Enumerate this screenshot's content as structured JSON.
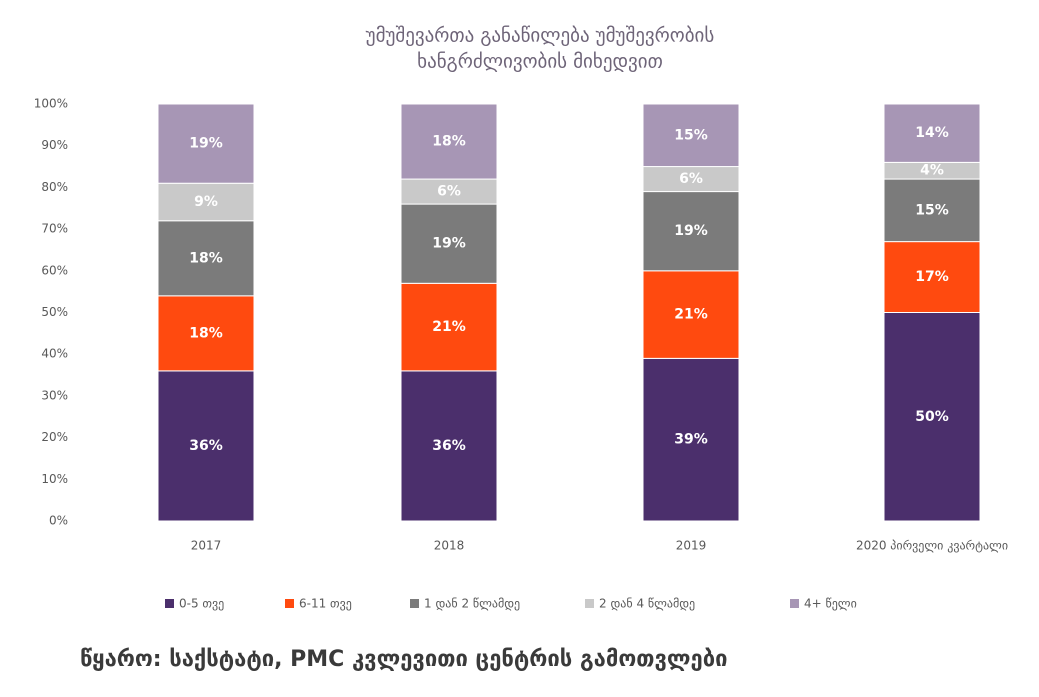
{
  "chart_data": {
    "type": "stacked_bar",
    "title": [
      "უმუშევართა განაწილება უმუშევრობის",
      "ხანგრძლივობის მიხედვით"
    ],
    "categories": [
      "2017",
      "2018",
      "2019",
      "2020 პირველი კვარტალი"
    ],
    "series": [
      {
        "name": "0-5 თვე",
        "color": "#4b2f6c",
        "values": [
          36,
          36,
          39,
          50
        ],
        "value_labels": [
          "36%",
          "36%",
          "39%",
          "50%"
        ]
      },
      {
        "name": "6-11 თვე",
        "color": "#ff4a0f",
        "values": [
          18,
          21,
          21,
          17
        ],
        "value_labels": [
          "18%",
          "21%",
          "21%",
          "17%"
        ]
      },
      {
        "name": "1 დან 2 წლამდე",
        "color": "#7b7b7b",
        "values": [
          18,
          19,
          19,
          15
        ],
        "value_labels": [
          "18%",
          "19%",
          "19%",
          "15%"
        ]
      },
      {
        "name": "2 დან 4 წლამდე",
        "color": "#c9c9c9",
        "values": [
          9,
          6,
          6,
          4
        ],
        "value_labels": [
          "9%",
          "6%",
          "6%",
          "4%"
        ]
      },
      {
        "name": "4+ წელი",
        "color": "#a796b5",
        "values": [
          19,
          18,
          15,
          14
        ],
        "value_labels": [
          "19%",
          "18%",
          "15%",
          "14%"
        ]
      }
    ],
    "ylim": [
      0,
      100
    ],
    "yticks": [
      {
        "value": 0,
        "label": "0%"
      },
      {
        "value": 10,
        "label": "10%"
      },
      {
        "value": 20,
        "label": "20%"
      },
      {
        "value": 30,
        "label": "30%"
      },
      {
        "value": 40,
        "label": "40%"
      },
      {
        "value": 50,
        "label": "50%"
      },
      {
        "value": 60,
        "label": "60%"
      },
      {
        "value": 70,
        "label": "70%"
      },
      {
        "value": 80,
        "label": "80%"
      },
      {
        "value": 90,
        "label": "90%"
      },
      {
        "value": 100,
        "label": "100%"
      }
    ],
    "legend": "bottom",
    "source": "წყარო: საქსტატი, PMC კვლევითი ცენტრის გამოთვლები"
  }
}
